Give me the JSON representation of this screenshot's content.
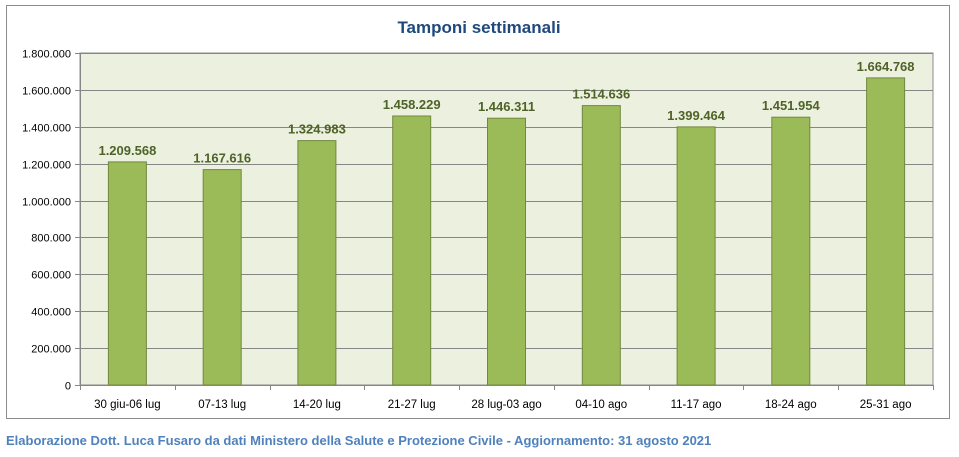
{
  "chart_data": {
    "type": "bar",
    "title": "Tamponi settimanali",
    "xlabel": "",
    "ylabel": "",
    "categories": [
      "30 giu-06 lug",
      "07-13 lug",
      "14-20 lug",
      "21-27 lug",
      "28 lug-03 ago",
      "04-10 ago",
      "11-17 ago",
      "18-24 ago",
      "25-31 ago"
    ],
    "values": [
      1209568,
      1167616,
      1324983,
      1458229,
      1446311,
      1514636,
      1399464,
      1451954,
      1664768
    ],
    "value_labels": [
      "1.209.568",
      "1.167.616",
      "1.324.983",
      "1.458.229",
      "1.446.311",
      "1.514.636",
      "1.399.464",
      "1.451.954",
      "1.664.768"
    ],
    "ylim": [
      0,
      1800000
    ],
    "yticks": [
      0,
      200000,
      400000,
      600000,
      800000,
      1000000,
      1200000,
      1400000,
      1600000,
      1800000
    ],
    "ytick_labels": [
      "0",
      "200.000",
      "400.000",
      "600.000",
      "800.000",
      "1.000.000",
      "1.200.000",
      "1.400.000",
      "1.600.000",
      "1.800.000"
    ],
    "grid": true,
    "legend": "none",
    "bar_color": "#9bbb59",
    "bar_edge_color": "#71893f",
    "plot_background": "#ebf1de",
    "label_color": "#4f6228",
    "title_color": "#1f497d"
  },
  "footer": {
    "caption": "Elaborazione Dott. Luca Fusaro da dati Ministero della Salute e Protezione Civile - Aggiornamento: 31 agosto 2021",
    "color": "#4f81bd"
  }
}
